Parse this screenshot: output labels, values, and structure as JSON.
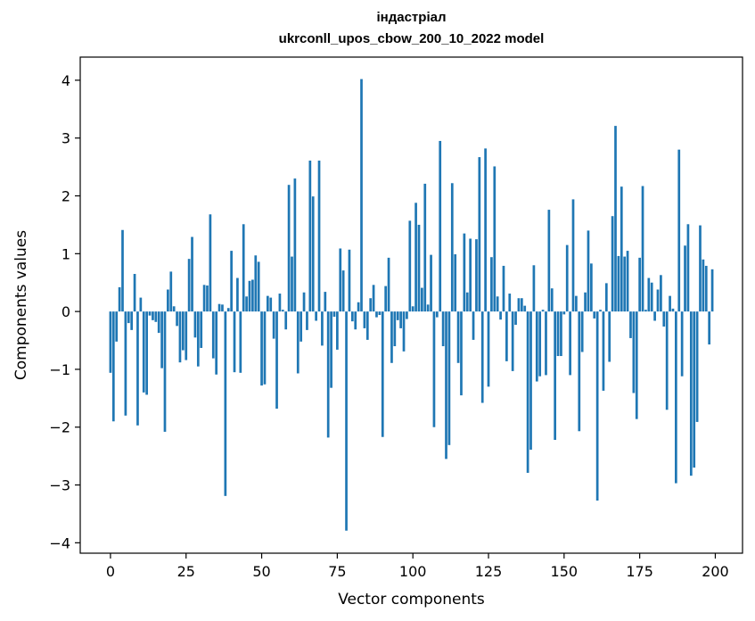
{
  "chart_data": {
    "type": "bar",
    "title_line1": "індастріал",
    "title_line2": "ukrconll_upos_cbow_200_10_2022 model",
    "xlabel": "Vector components",
    "ylabel": "Components values",
    "xlim": [
      -10,
      209
    ],
    "ylim": [
      -4.18,
      4.4
    ],
    "x_ticks": [
      0,
      25,
      50,
      75,
      100,
      125,
      150,
      175,
      200
    ],
    "y_ticks": [
      -4,
      -3,
      -2,
      -1,
      0,
      1,
      2,
      3,
      4
    ],
    "y_tick_labels": [
      "−4",
      "−3",
      "−2",
      "−1",
      "0",
      "1",
      "2",
      "3",
      "4"
    ],
    "bar_color": "#1f77b4",
    "values": [
      -1.06,
      -1.9,
      -0.52,
      0.42,
      1.41,
      -1.8,
      -0.2,
      -0.32,
      0.65,
      -1.97,
      0.24,
      -1.4,
      -1.44,
      -0.07,
      -0.15,
      -0.18,
      -0.37,
      -0.98,
      -2.08,
      0.38,
      0.69,
      0.09,
      -0.25,
      -0.88,
      -0.67,
      -0.84,
      0.91,
      1.29,
      -0.45,
      -0.95,
      -0.63,
      0.46,
      0.45,
      1.68,
      -0.81,
      -1.09,
      0.13,
      0.12,
      -3.19,
      0.06,
      1.05,
      -1.05,
      0.58,
      -1.06,
      1.51,
      0.26,
      0.53,
      0.55,
      0.97,
      0.86,
      -1.28,
      -1.26,
      0.27,
      0.24,
      -0.47,
      -1.68,
      0.31,
      0.03,
      -0.31,
      2.19,
      0.95,
      2.3,
      -1.07,
      -0.52,
      0.33,
      -0.32,
      2.61,
      1.99,
      -0.16,
      2.61,
      -0.59,
      0.34,
      -2.18,
      -1.32,
      -0.09,
      -0.66,
      1.09,
      0.71,
      -3.79,
      1.07,
      -0.17,
      -0.31,
      0.16,
      4.02,
      -0.29,
      -0.49,
      0.23,
      0.46,
      -0.1,
      -0.06,
      -2.17,
      0.44,
      0.93,
      -0.89,
      -0.6,
      -0.15,
      -0.29,
      -0.69,
      -0.13,
      1.57,
      0.09,
      1.88,
      1.5,
      0.41,
      2.21,
      0.12,
      0.98,
      -2.0,
      -0.1,
      2.95,
      -0.6,
      -2.55,
      -2.31,
      2.22,
      0.99,
      -0.89,
      -1.45,
      1.35,
      0.33,
      1.26,
      -0.49,
      1.25,
      2.67,
      -1.58,
      2.82,
      -1.3,
      0.94,
      2.51,
      0.26,
      -0.14,
      0.79,
      -0.86,
      0.31,
      -1.03,
      -0.23,
      0.23,
      0.23,
      0.1,
      -2.79,
      -2.39,
      0.8,
      -1.21,
      -1.12,
      0.03,
      -1.1,
      1.76,
      0.4,
      -2.22,
      -0.77,
      -0.77,
      -0.05,
      1.15,
      -1.1,
      1.94,
      0.27,
      -2.07,
      -0.7,
      0.33,
      1.4,
      0.83,
      -0.12,
      -3.27,
      0.03,
      -1.37,
      0.49,
      -0.87,
      1.65,
      3.21,
      0.96,
      2.16,
      0.95,
      1.05,
      -0.46,
      -1.41,
      -1.86,
      0.93,
      2.17,
      0.03,
      0.58,
      0.5,
      -0.16,
      0.38,
      0.63,
      -0.26,
      -1.7,
      0.27,
      0.05,
      -2.97,
      2.8,
      -1.12,
      1.14,
      1.51,
      -2.84,
      -2.7,
      -1.91,
      1.49,
      0.9,
      0.79,
      -0.57,
      0.73
    ]
  }
}
